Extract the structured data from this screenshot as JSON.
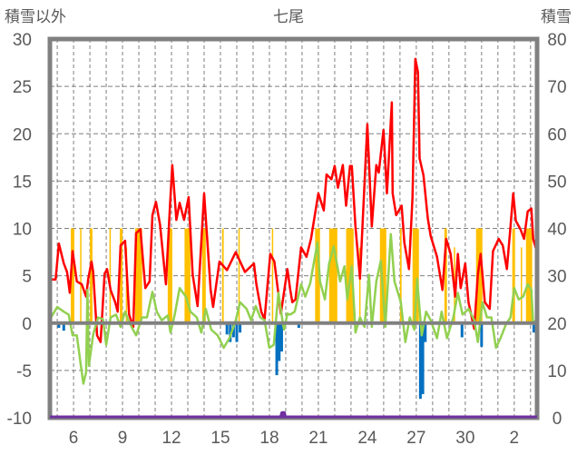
{
  "chart_data": {
    "type": "line",
    "title": "七尾",
    "left_axis_label": "積雪以外",
    "right_axis_label": "積雪",
    "ylim_left": [
      -10,
      30
    ],
    "yticks_left": [
      30,
      25,
      20,
      15,
      10,
      5,
      0,
      -5,
      -10
    ],
    "ylim_right": [
      0,
      80
    ],
    "yticks_right": [
      80,
      70,
      60,
      50,
      40,
      30,
      20,
      10,
      0
    ],
    "xlim_days": [
      4.55,
      34.4
    ],
    "x_gridlines_days": [
      5,
      6,
      7,
      8,
      9,
      10,
      11,
      12,
      13,
      14,
      15,
      16,
      17,
      18,
      19,
      20,
      21,
      22,
      23,
      24,
      25,
      26,
      27,
      28,
      29,
      30,
      31,
      32,
      33,
      34
    ],
    "xticks": [
      {
        "day": 6,
        "label": "6"
      },
      {
        "day": 9,
        "label": "9"
      },
      {
        "day": 12,
        "label": "12"
      },
      {
        "day": 15,
        "label": "15"
      },
      {
        "day": 18,
        "label": "18"
      },
      {
        "day": 21,
        "label": "21"
      },
      {
        "day": 24,
        "label": "24"
      },
      {
        "day": 27,
        "label": "27"
      },
      {
        "day": 30,
        "label": "30"
      },
      {
        "day": 33,
        "label": "2"
      }
    ],
    "grid": true,
    "colors": {
      "red": "#ff0000",
      "green": "#92d050",
      "orange": "#ffc000",
      "blue": "#0070c0",
      "purple": "#7030a0",
      "axis": "#808080"
    },
    "series": [
      {
        "name": "red",
        "axis": "left",
        "type": "line",
        "points": [
          [
            4.55,
            4.6
          ],
          [
            4.9,
            4.6
          ],
          [
            5.1,
            8.4
          ],
          [
            5.4,
            6.3
          ],
          [
            5.6,
            5.4
          ],
          [
            5.77,
            3.2
          ],
          [
            5.94,
            7.6
          ],
          [
            6.2,
            4.4
          ],
          [
            6.5,
            4.1
          ],
          [
            6.77,
            2.8
          ],
          [
            6.9,
            4.7
          ],
          [
            7.1,
            6.5
          ],
          [
            7.2,
            5.4
          ],
          [
            7.44,
            -1.3
          ],
          [
            7.66,
            -2
          ],
          [
            7.9,
            5.2
          ],
          [
            8.05,
            5.7
          ],
          [
            8.27,
            3.5
          ],
          [
            8.55,
            2.2
          ],
          [
            8.7,
            1.2
          ],
          [
            8.88,
            8.2
          ],
          [
            9.16,
            8.7
          ],
          [
            9.4,
            0.9
          ],
          [
            9.66,
            -0.4
          ],
          [
            9.83,
            9.5
          ],
          [
            10.1,
            9.9
          ],
          [
            10.3,
            5.7
          ],
          [
            10.4,
            3.7
          ],
          [
            10.66,
            4.4
          ],
          [
            10.83,
            11.4
          ],
          [
            11.05,
            12.8
          ],
          [
            11.3,
            10.4
          ],
          [
            11.66,
            4.1
          ],
          [
            11.9,
            12.1
          ],
          [
            12.05,
            16.7
          ],
          [
            12.3,
            10.9
          ],
          [
            12.5,
            12.7
          ],
          [
            12.77,
            10.9
          ],
          [
            13.05,
            13.3
          ],
          [
            13.3,
            5.1
          ],
          [
            13.6,
            1.8
          ],
          [
            14.0,
            13.7
          ],
          [
            14.4,
            3.5
          ],
          [
            14.55,
            1.7
          ],
          [
            14.94,
            6.5
          ],
          [
            15.4,
            5.6
          ],
          [
            15.94,
            7.5
          ],
          [
            16.5,
            5.4
          ],
          [
            17.05,
            6.3
          ],
          [
            17.2,
            4.1
          ],
          [
            17.5,
            1.2
          ],
          [
            17.7,
            0.4
          ],
          [
            18.05,
            7.3
          ],
          [
            18.3,
            6.5
          ],
          [
            18.7,
            1.0
          ],
          [
            19.1,
            5.7
          ],
          [
            19.27,
            3.6
          ],
          [
            19.4,
            2.2
          ],
          [
            19.6,
            2.5
          ],
          [
            19.94,
            8.0
          ],
          [
            20.27,
            7.0
          ],
          [
            20.55,
            8.9
          ],
          [
            21.0,
            13.7
          ],
          [
            21.33,
            11.9
          ],
          [
            21.5,
            15.7
          ],
          [
            21.8,
            15.2
          ],
          [
            22.0,
            16.6
          ],
          [
            22.2,
            14.3
          ],
          [
            22.5,
            16.7
          ],
          [
            22.7,
            12.4
          ],
          [
            22.94,
            16.6
          ],
          [
            23.05,
            16.6
          ],
          [
            23.27,
            10.2
          ],
          [
            23.55,
            4.7
          ],
          [
            24.0,
            21.0
          ],
          [
            24.27,
            10.2
          ],
          [
            24.55,
            16.7
          ],
          [
            24.7,
            15.9
          ],
          [
            24.99,
            20.4
          ],
          [
            25.2,
            13.7
          ],
          [
            25.5,
            23.3
          ],
          [
            25.55,
            13.7
          ],
          [
            25.77,
            11.4
          ],
          [
            26.1,
            12.4
          ],
          [
            26.27,
            8.5
          ],
          [
            26.55,
            5.7
          ],
          [
            26.77,
            13.3
          ],
          [
            26.94,
            27.9
          ],
          [
            27.1,
            26.5
          ],
          [
            27.2,
            17.4
          ],
          [
            27.44,
            15.6
          ],
          [
            27.7,
            11.1
          ],
          [
            27.88,
            9.2
          ],
          [
            28.27,
            7.0
          ],
          [
            28.6,
            3.5
          ],
          [
            28.83,
            8.9
          ],
          [
            29.1,
            7.3
          ],
          [
            29.38,
            2.8
          ],
          [
            29.55,
            7.3
          ],
          [
            29.72,
            3.7
          ],
          [
            30.0,
            6.3
          ],
          [
            30.2,
            2.2
          ],
          [
            30.55,
            -0.6
          ],
          [
            30.77,
            5.1
          ],
          [
            30.94,
            7.3
          ],
          [
            31.2,
            2.2
          ],
          [
            31.5,
            1.5
          ],
          [
            31.7,
            7.6
          ],
          [
            32.05,
            8.9
          ],
          [
            32.3,
            8.2
          ],
          [
            32.55,
            5.7
          ],
          [
            32.77,
            10.2
          ],
          [
            32.94,
            13.7
          ],
          [
            33.1,
            10.8
          ],
          [
            33.38,
            9.9
          ],
          [
            33.6,
            8.9
          ],
          [
            33.83,
            11.8
          ],
          [
            34.05,
            12.1
          ],
          [
            34.16,
            8.9
          ],
          [
            34.38,
            7.6
          ]
        ]
      },
      {
        "name": "green",
        "axis": "left",
        "type": "line",
        "points": [
          [
            4.55,
            0.4
          ],
          [
            5.0,
            1.7
          ],
          [
            5.4,
            1.2
          ],
          [
            5.7,
            0.9
          ],
          [
            5.94,
            -1.3
          ],
          [
            6.2,
            -1.3
          ],
          [
            6.4,
            -3.9
          ],
          [
            6.6,
            -6.4
          ],
          [
            6.77,
            -5.2
          ],
          [
            6.85,
            3.5
          ],
          [
            6.94,
            -4.5
          ],
          [
            7.2,
            -1.2
          ],
          [
            7.5,
            0.6
          ],
          [
            7.8,
            0.4
          ],
          [
            8.0,
            -2.3
          ],
          [
            8.27,
            0.6
          ],
          [
            8.6,
            0.9
          ],
          [
            8.88,
            -0.4
          ],
          [
            9.16,
            1.2
          ],
          [
            9.4,
            0.1
          ],
          [
            9.83,
            -1.3
          ],
          [
            10.2,
            0.6
          ],
          [
            10.5,
            0.6
          ],
          [
            10.83,
            3.3
          ],
          [
            11.1,
            1.2
          ],
          [
            11.4,
            0.3
          ],
          [
            11.77,
            0.8
          ],
          [
            11.94,
            -1.0
          ],
          [
            12.2,
            0.9
          ],
          [
            12.5,
            3.7
          ],
          [
            12.88,
            2.8
          ],
          [
            13.16,
            1.2
          ],
          [
            13.55,
            0.6
          ],
          [
            13.83,
            -1.0
          ],
          [
            14.1,
            1.5
          ],
          [
            14.44,
            -0.7
          ],
          [
            14.83,
            -1.3
          ],
          [
            15.2,
            -2.6
          ],
          [
            15.55,
            -1.6
          ],
          [
            15.94,
            0.3
          ],
          [
            16.2,
            2.2
          ],
          [
            16.6,
            1.5
          ],
          [
            16.88,
            0.3
          ],
          [
            17.16,
            1.8
          ],
          [
            17.44,
            0.6
          ],
          [
            17.7,
            0.3
          ],
          [
            17.99,
            -2.6
          ],
          [
            18.27,
            -2.3
          ],
          [
            18.55,
            3.2
          ],
          [
            18.83,
            -0.1
          ],
          [
            18.9,
            -0.7
          ],
          [
            19.1,
            1.0
          ],
          [
            19.27,
            0.9
          ],
          [
            19.55,
            1.2
          ],
          [
            19.94,
            4.1
          ],
          [
            20.2,
            2.8
          ],
          [
            20.5,
            4.2
          ],
          [
            20.94,
            8.5
          ],
          [
            21.1,
            4.4
          ],
          [
            21.4,
            2.5
          ],
          [
            21.66,
            6.3
          ],
          [
            21.94,
            8.1
          ],
          [
            22.33,
            4.4
          ],
          [
            22.6,
            6.0
          ],
          [
            22.77,
            2.5
          ],
          [
            23.05,
            6.0
          ],
          [
            23.27,
            -1.0
          ],
          [
            23.55,
            0.6
          ],
          [
            23.83,
            -0.4
          ],
          [
            24.1,
            5.1
          ],
          [
            24.27,
            -0.4
          ],
          [
            24.55,
            4.4
          ],
          [
            24.83,
            6.6
          ],
          [
            25.1,
            -0.4
          ],
          [
            25.44,
            9.4
          ],
          [
            25.66,
            4.4
          ],
          [
            26.05,
            2.2
          ],
          [
            26.33,
            -2.0
          ],
          [
            26.6,
            0.6
          ],
          [
            26.88,
            -0.7
          ],
          [
            27.05,
            4.7
          ],
          [
            27.33,
            -1.3
          ],
          [
            27.6,
            1.2
          ],
          [
            27.88,
            0.3
          ],
          [
            28.27,
            -1.6
          ],
          [
            28.55,
            1.2
          ],
          [
            28.88,
            -1.6
          ],
          [
            29.27,
            0.6
          ],
          [
            29.55,
            3.2
          ],
          [
            29.83,
            0.9
          ],
          [
            30.2,
            1.5
          ],
          [
            30.55,
            0.3
          ],
          [
            30.77,
            -2.0
          ],
          [
            31.05,
            2.2
          ],
          [
            31.33,
            0.6
          ],
          [
            31.6,
            0.6
          ],
          [
            31.88,
            -2.6
          ],
          [
            32.16,
            -1.6
          ],
          [
            32.5,
            -0.1
          ],
          [
            32.77,
            0.6
          ],
          [
            33.0,
            3.7
          ],
          [
            33.27,
            2.5
          ],
          [
            33.55,
            2.8
          ],
          [
            33.83,
            4.1
          ],
          [
            34.05,
            3.5
          ],
          [
            34.16,
            -0.1
          ],
          [
            34.38,
            0.4
          ]
        ]
      },
      {
        "name": "orange",
        "axis": "left",
        "type": "bar",
        "bars": [
          [
            5.83,
            6.05,
            10
          ],
          [
            6.4,
            6.45,
            10
          ],
          [
            7.0,
            7.16,
            10
          ],
          [
            8.2,
            8.25,
            10
          ],
          [
            8.83,
            9.0,
            10
          ],
          [
            9.2,
            9.25,
            8
          ],
          [
            9.77,
            10.2,
            10
          ],
          [
            11.77,
            12.05,
            10
          ],
          [
            12.8,
            13.16,
            10
          ],
          [
            13.88,
            14.1,
            10
          ],
          [
            15.1,
            15.2,
            10
          ],
          [
            16.1,
            16.15,
            10
          ],
          [
            18.15,
            18.22,
            10
          ],
          [
            20.8,
            21.1,
            10
          ],
          [
            21.66,
            22.16,
            10
          ],
          [
            22.7,
            23.16,
            10
          ],
          [
            23.5,
            23.55,
            8
          ],
          [
            24.77,
            25.16,
            10
          ],
          [
            26.0,
            26.1,
            10
          ],
          [
            26.77,
            27.16,
            10
          ],
          [
            28.72,
            28.88,
            10
          ],
          [
            29.3,
            29.35,
            8
          ],
          [
            30.66,
            31.05,
            10
          ],
          [
            32.88,
            33.05,
            10
          ],
          [
            33.4,
            33.45,
            8
          ],
          [
            33.72,
            34.1,
            10
          ]
        ]
      },
      {
        "name": "blue",
        "axis": "left",
        "type": "bar",
        "bars": [
          [
            4.6,
            -1.0
          ],
          [
            5.1,
            -0.5
          ],
          [
            5.4,
            -0.8
          ],
          [
            15.4,
            -1.2
          ],
          [
            15.6,
            -2.0
          ],
          [
            15.8,
            -1.5
          ],
          [
            16.0,
            -2.0
          ],
          [
            16.2,
            -1.0
          ],
          [
            18.45,
            -5.5
          ],
          [
            18.6,
            -4.0
          ],
          [
            18.75,
            -3.0
          ],
          [
            19.8,
            -0.5
          ],
          [
            27.25,
            -8.0
          ],
          [
            27.4,
            -7.5
          ],
          [
            27.55,
            -2.0
          ],
          [
            29.8,
            -1.5
          ],
          [
            31.0,
            -2.5
          ],
          [
            34.2,
            -1.0
          ]
        ]
      },
      {
        "name": "purple",
        "axis": "right",
        "type": "line",
        "points": [
          [
            4.55,
            0
          ],
          [
            18.7,
            0
          ],
          [
            18.78,
            1
          ],
          [
            18.9,
            1
          ],
          [
            18.95,
            0
          ],
          [
            34.38,
            0
          ]
        ]
      }
    ]
  }
}
